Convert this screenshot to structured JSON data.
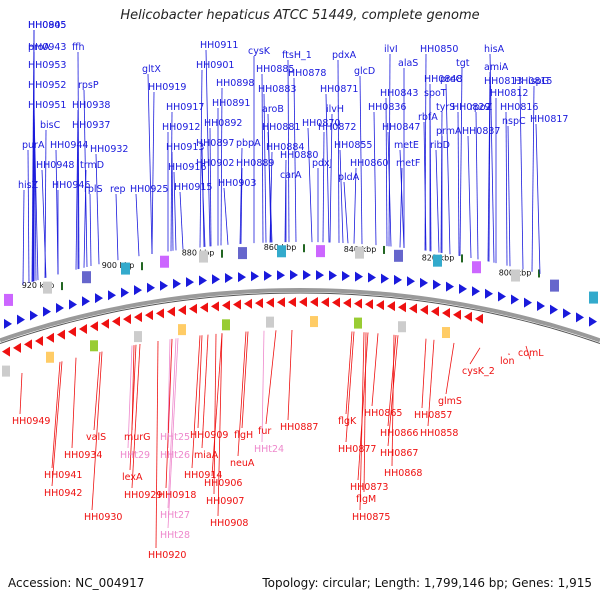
{
  "header": {
    "title": "Helicobacter hepaticus ATCC 51449, complete genome"
  },
  "footer": {
    "accession": "Accession: NC_004917",
    "stats": "Topology: circular; Length: 1,799,146 bp; Genes: 1,915"
  },
  "colors": {
    "forward": "#1a1adc",
    "reverse": "#ee1111",
    "rna": "#ee88cc",
    "backbone": "#888888"
  },
  "kbp_ticks": [
    "920 kbp",
    "900 kbp",
    "880 kbp",
    "860 kbp",
    "840 kbp",
    "820 kbp",
    "800 kbp"
  ],
  "forward_genes": [
    "HH0945",
    "HH0943",
    "HH0953",
    "ffh",
    "HH0952",
    "rpsP",
    "HH0951",
    "HH0938",
    "bisC",
    "HH0937",
    "purA",
    "HH0944",
    "HH0932",
    "HH0948",
    "trmD",
    "hisZ",
    "HH0946",
    "rplS",
    "rep",
    "HH0925",
    "gltX",
    "HH0919",
    "HH0917",
    "HH0912",
    "HH0913",
    "HH0916",
    "HH0915",
    "HH0911",
    "HH0901",
    "HH0898",
    "HH0891",
    "HH0892",
    "HH0897",
    "HH0902",
    "HH0903",
    "pbpA",
    "HH0889",
    "cysK",
    "HH0885",
    "HH0883",
    "aroB",
    "HH0881",
    "HH0884",
    "HH0880",
    "carA",
    "ftsH_1",
    "HH0878",
    "HH0871",
    "HH0870",
    "ilvH",
    "HH0872",
    "pdxJ",
    "pdxA",
    "glcD",
    "HH0855",
    "pldA",
    "HH0860",
    "ilvI",
    "alaS",
    "HH0843",
    "HH0836",
    "HH0847",
    "metE",
    "metF",
    "HH0850",
    "HH0848",
    "spoT",
    "rbfA",
    "ribD",
    "proC",
    "tgt",
    "tyrS",
    "prmA",
    "HH0829",
    "rpoZ",
    "HH0837",
    "hisA",
    "amiA",
    "HH0813",
    "HH0812",
    "HH0816",
    "nspC",
    "HH0815",
    "HH0817",
    "ispG",
    "HH0805",
    "proA"
  ],
  "reverse_genes": [
    "HH0949",
    "HH0934",
    "valS",
    "HH0941",
    "HH0942",
    "murG",
    "HHt29",
    "lexA",
    "HH0929",
    "HH0930",
    "HHt25",
    "HHt26",
    "HH0918",
    "HHt27",
    "HHt28",
    "HH0920",
    "HH0909",
    "miaA",
    "HH0914",
    "HH0906",
    "HH0907",
    "HH0908",
    "flgH",
    "neuA",
    "fur",
    "HHt24",
    "HH0887",
    "flgK",
    "HH0877",
    "HH0873",
    "flgM",
    "HH0875",
    "HH0865",
    "HH0866",
    "HH0867",
    "HH0868",
    "HH0857",
    "HH0858",
    "glmS",
    "cysK_2",
    "lon",
    "comL"
  ]
}
